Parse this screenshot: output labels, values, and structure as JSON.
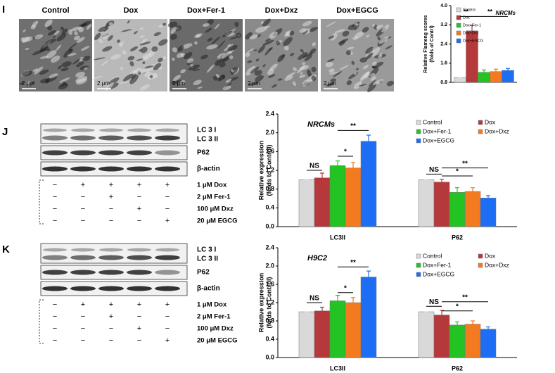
{
  "panel_labels": [
    "I",
    "J",
    "K"
  ],
  "micrographs": {
    "labels": [
      "Control",
      "Dox",
      "Dox+Fer-1",
      "Dox+Dxz",
      "Dox+EGCG"
    ],
    "scale_bar": "2 μm"
  },
  "blots": [
    {
      "band_labels": [
        "LC 3 I",
        "LC 3 II",
        "P62",
        "β-actin"
      ],
      "treatments": [
        {
          "label": "1 μM Dox",
          "marks": [
            "−",
            "+",
            "+",
            "+",
            "+"
          ]
        },
        {
          "label": "2 μM Fer-1",
          "marks": [
            "−",
            "−",
            "+",
            "−",
            "−"
          ]
        },
        {
          "label": "100 μM Dxz",
          "marks": [
            "−",
            "−",
            "−",
            "+",
            "−"
          ]
        },
        {
          "label": "20 μM EGCG",
          "marks": [
            "−",
            "−",
            "−",
            "−",
            "+"
          ]
        }
      ]
    },
    {
      "band_labels": [
        "LC 3 I",
        "LC 3 II",
        "P62",
        "β-actin"
      ],
      "treatments": [
        {
          "label": "1 μM Dox",
          "marks": [
            "−",
            "+",
            "+",
            "+",
            "+"
          ]
        },
        {
          "label": "2 μM Fer-1",
          "marks": [
            "−",
            "−",
            "+",
            "−",
            "−"
          ]
        },
        {
          "label": "100 μM Dxz",
          "marks": [
            "−",
            "−",
            "−",
            "+",
            "−"
          ]
        },
        {
          "label": "20 μM EGCG",
          "marks": [
            "−",
            "−",
            "−",
            "−",
            "+"
          ]
        }
      ]
    }
  ],
  "chart_data": [
    {
      "type": "bar",
      "title": "NRCMs",
      "y_label": [
        "Relative Flameng scores",
        "(folds of Contrl)"
      ],
      "categories": [
        null
      ],
      "series": [
        {
          "name": "Control",
          "color": "#d9d9d9",
          "values": [
            1.0
          ],
          "errors": [
            0
          ]
        },
        {
          "name": "Dox",
          "color": "#b5393b",
          "values": [
            2.95
          ],
          "errors": [
            0.22
          ]
        },
        {
          "name": "Dox+Fer-1",
          "color": "#22c322",
          "values": [
            1.22
          ],
          "errors": [
            0.1
          ]
        },
        {
          "name": "Dox+Dxz",
          "color": "#f47a20",
          "values": [
            1.25
          ],
          "errors": [
            0.1
          ]
        },
        {
          "name": "Dox+EGCG",
          "color": "#1e6ef5",
          "values": [
            1.3
          ],
          "errors": [
            0.08
          ]
        }
      ],
      "ylim": [
        0.8,
        4.0
      ],
      "yticks": [
        {
          "value": 0.8,
          "label": "0.8"
        },
        {
          "value": 1.6,
          "label": "1.6"
        },
        {
          "value": 2.4,
          "label": "2.4"
        },
        {
          "value": 3.2,
          "label": "3.2"
        },
        {
          "value": 4.0,
          "label": "4.0"
        }
      ],
      "legend": "upper left",
      "annotations": [
        "**",
        "**"
      ]
    },
    {
      "type": "bar",
      "title": "NRCMs",
      "y_label": [
        "Relative expression",
        "(folds to Control)"
      ],
      "categories": [
        "LC3II",
        "P62"
      ],
      "series": [
        {
          "name": "Control",
          "color": "#d9d9d9",
          "values": [
            1.0,
            1.0
          ],
          "errors": [
            0,
            0
          ]
        },
        {
          "name": "Dox",
          "color": "#b5393b",
          "values": [
            1.04,
            0.95
          ],
          "errors": [
            0.1,
            0.06
          ]
        },
        {
          "name": "Dox+Fer-1",
          "color": "#22c322",
          "values": [
            1.3,
            0.73
          ],
          "errors": [
            0.1,
            0.1
          ]
        },
        {
          "name": "Dox+Dxz",
          "color": "#f47a20",
          "values": [
            1.25,
            0.75
          ],
          "errors": [
            0.12,
            0.08
          ]
        },
        {
          "name": "Dox+EGCG",
          "color": "#1e6ef5",
          "values": [
            1.82,
            0.61
          ],
          "errors": [
            0.13,
            0.05
          ]
        }
      ],
      "ylim": [
        0,
        2.4
      ],
      "yticks": [
        {
          "value": 0,
          "label": "0.0"
        },
        {
          "value": 0.4,
          "label": "0.4"
        },
        {
          "value": 0.8,
          "label": "0.8"
        },
        {
          "value": 1.2,
          "label": "1.2"
        },
        {
          "value": 1.6,
          "label": "1.6"
        },
        {
          "value": 2.0,
          "label": "2.0"
        },
        {
          "value": 2.4,
          "label": "2.4"
        }
      ],
      "legend": "upper right",
      "annotations": [
        "NS",
        "*",
        "**",
        "NS",
        "*",
        "**"
      ]
    },
    {
      "type": "bar",
      "title": "H9C2",
      "y_label": [
        "Relative expression",
        "(folds to Control)"
      ],
      "categories": [
        "LC3II",
        "P62"
      ],
      "series": [
        {
          "name": "Control",
          "color": "#d9d9d9",
          "values": [
            1.0,
            1.0
          ],
          "errors": [
            0,
            0
          ]
        },
        {
          "name": "Dox",
          "color": "#b5393b",
          "values": [
            1.02,
            0.93
          ],
          "errors": [
            0.08,
            0.1
          ]
        },
        {
          "name": "Dox+Fer-1",
          "color": "#22c322",
          "values": [
            1.24,
            0.71
          ],
          "errors": [
            0.12,
            0.07
          ]
        },
        {
          "name": "Dox+Dxz",
          "color": "#f47a20",
          "values": [
            1.2,
            0.73
          ],
          "errors": [
            0.11,
            0.07
          ]
        },
        {
          "name": "Dox+EGCG",
          "color": "#1e6ef5",
          "values": [
            1.76,
            0.62
          ],
          "errors": [
            0.13,
            0.05
          ]
        }
      ],
      "ylim": [
        0,
        2.4
      ],
      "yticks": [
        {
          "value": 0,
          "label": "0.0"
        },
        {
          "value": 0.4,
          "label": "0.4"
        },
        {
          "value": 0.8,
          "label": "0.8"
        },
        {
          "value": 1.2,
          "label": "1.2"
        },
        {
          "value": 1.6,
          "label": "1.6"
        },
        {
          "value": 2.0,
          "label": "2.0"
        },
        {
          "value": 2.4,
          "label": "2.4"
        }
      ],
      "legend": "upper right",
      "annotations": [
        "NS",
        "*",
        "**",
        "NS",
        "*",
        "**"
      ]
    }
  ]
}
